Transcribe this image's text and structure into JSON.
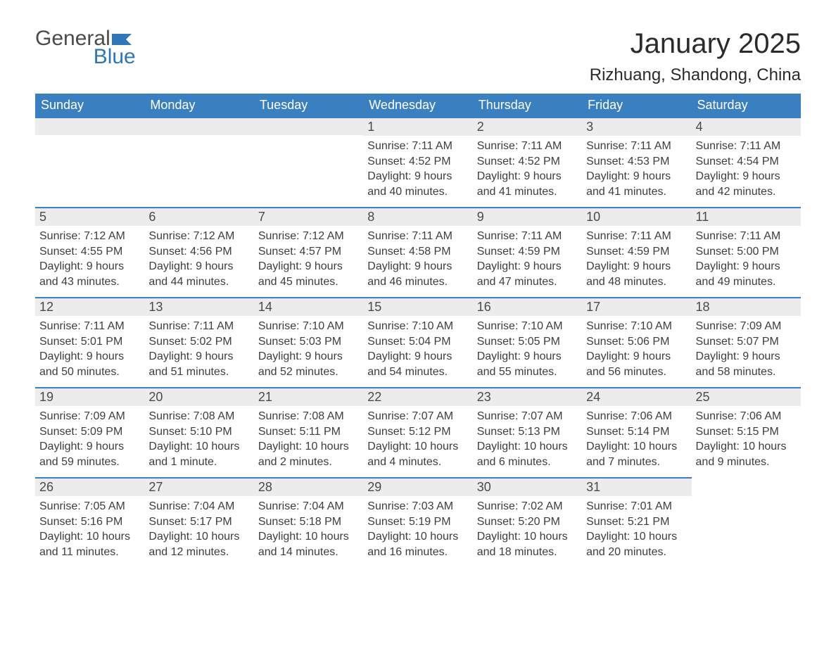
{
  "logo": {
    "general": "General",
    "blue": "Blue"
  },
  "header": {
    "month_title": "January 2025",
    "location": "Rizhuang, Shandong, China"
  },
  "labels": {
    "sunrise": "Sunrise:",
    "sunset": "Sunset:",
    "daylight": "Daylight:"
  },
  "colors": {
    "header_bg": "#3a7fbf",
    "header_text": "#ffffff",
    "daynum_bg": "#ececec",
    "daynum_border": "#3a7fbf",
    "body_text": "#3d3d3d",
    "logo_general": "#4b4b4b",
    "logo_blue": "#2f77b6",
    "background": "#ffffff"
  },
  "calendar": {
    "day_headers": [
      "Sunday",
      "Monday",
      "Tuesday",
      "Wednesday",
      "Thursday",
      "Friday",
      "Saturday"
    ],
    "weeks": [
      [
        null,
        null,
        null,
        {
          "day": "1",
          "sunrise": "7:11 AM",
          "sunset": "4:52 PM",
          "daylight": "9 hours and 40 minutes."
        },
        {
          "day": "2",
          "sunrise": "7:11 AM",
          "sunset": "4:52 PM",
          "daylight": "9 hours and 41 minutes."
        },
        {
          "day": "3",
          "sunrise": "7:11 AM",
          "sunset": "4:53 PM",
          "daylight": "9 hours and 41 minutes."
        },
        {
          "day": "4",
          "sunrise": "7:11 AM",
          "sunset": "4:54 PM",
          "daylight": "9 hours and 42 minutes."
        }
      ],
      [
        {
          "day": "5",
          "sunrise": "7:12 AM",
          "sunset": "4:55 PM",
          "daylight": "9 hours and 43 minutes."
        },
        {
          "day": "6",
          "sunrise": "7:12 AM",
          "sunset": "4:56 PM",
          "daylight": "9 hours and 44 minutes."
        },
        {
          "day": "7",
          "sunrise": "7:12 AM",
          "sunset": "4:57 PM",
          "daylight": "9 hours and 45 minutes."
        },
        {
          "day": "8",
          "sunrise": "7:11 AM",
          "sunset": "4:58 PM",
          "daylight": "9 hours and 46 minutes."
        },
        {
          "day": "9",
          "sunrise": "7:11 AM",
          "sunset": "4:59 PM",
          "daylight": "9 hours and 47 minutes."
        },
        {
          "day": "10",
          "sunrise": "7:11 AM",
          "sunset": "4:59 PM",
          "daylight": "9 hours and 48 minutes."
        },
        {
          "day": "11",
          "sunrise": "7:11 AM",
          "sunset": "5:00 PM",
          "daylight": "9 hours and 49 minutes."
        }
      ],
      [
        {
          "day": "12",
          "sunrise": "7:11 AM",
          "sunset": "5:01 PM",
          "daylight": "9 hours and 50 minutes."
        },
        {
          "day": "13",
          "sunrise": "7:11 AM",
          "sunset": "5:02 PM",
          "daylight": "9 hours and 51 minutes."
        },
        {
          "day": "14",
          "sunrise": "7:10 AM",
          "sunset": "5:03 PM",
          "daylight": "9 hours and 52 minutes."
        },
        {
          "day": "15",
          "sunrise": "7:10 AM",
          "sunset": "5:04 PM",
          "daylight": "9 hours and 54 minutes."
        },
        {
          "day": "16",
          "sunrise": "7:10 AM",
          "sunset": "5:05 PM",
          "daylight": "9 hours and 55 minutes."
        },
        {
          "day": "17",
          "sunrise": "7:10 AM",
          "sunset": "5:06 PM",
          "daylight": "9 hours and 56 minutes."
        },
        {
          "day": "18",
          "sunrise": "7:09 AM",
          "sunset": "5:07 PM",
          "daylight": "9 hours and 58 minutes."
        }
      ],
      [
        {
          "day": "19",
          "sunrise": "7:09 AM",
          "sunset": "5:09 PM",
          "daylight": "9 hours and 59 minutes."
        },
        {
          "day": "20",
          "sunrise": "7:08 AM",
          "sunset": "5:10 PM",
          "daylight": "10 hours and 1 minute."
        },
        {
          "day": "21",
          "sunrise": "7:08 AM",
          "sunset": "5:11 PM",
          "daylight": "10 hours and 2 minutes."
        },
        {
          "day": "22",
          "sunrise": "7:07 AM",
          "sunset": "5:12 PM",
          "daylight": "10 hours and 4 minutes."
        },
        {
          "day": "23",
          "sunrise": "7:07 AM",
          "sunset": "5:13 PM",
          "daylight": "10 hours and 6 minutes."
        },
        {
          "day": "24",
          "sunrise": "7:06 AM",
          "sunset": "5:14 PM",
          "daylight": "10 hours and 7 minutes."
        },
        {
          "day": "25",
          "sunrise": "7:06 AM",
          "sunset": "5:15 PM",
          "daylight": "10 hours and 9 minutes."
        }
      ],
      [
        {
          "day": "26",
          "sunrise": "7:05 AM",
          "sunset": "5:16 PM",
          "daylight": "10 hours and 11 minutes."
        },
        {
          "day": "27",
          "sunrise": "7:04 AM",
          "sunset": "5:17 PM",
          "daylight": "10 hours and 12 minutes."
        },
        {
          "day": "28",
          "sunrise": "7:04 AM",
          "sunset": "5:18 PM",
          "daylight": "10 hours and 14 minutes."
        },
        {
          "day": "29",
          "sunrise": "7:03 AM",
          "sunset": "5:19 PM",
          "daylight": "10 hours and 16 minutes."
        },
        {
          "day": "30",
          "sunrise": "7:02 AM",
          "sunset": "5:20 PM",
          "daylight": "10 hours and 18 minutes."
        },
        {
          "day": "31",
          "sunrise": "7:01 AM",
          "sunset": "5:21 PM",
          "daylight": "10 hours and 20 minutes."
        },
        null
      ]
    ]
  }
}
